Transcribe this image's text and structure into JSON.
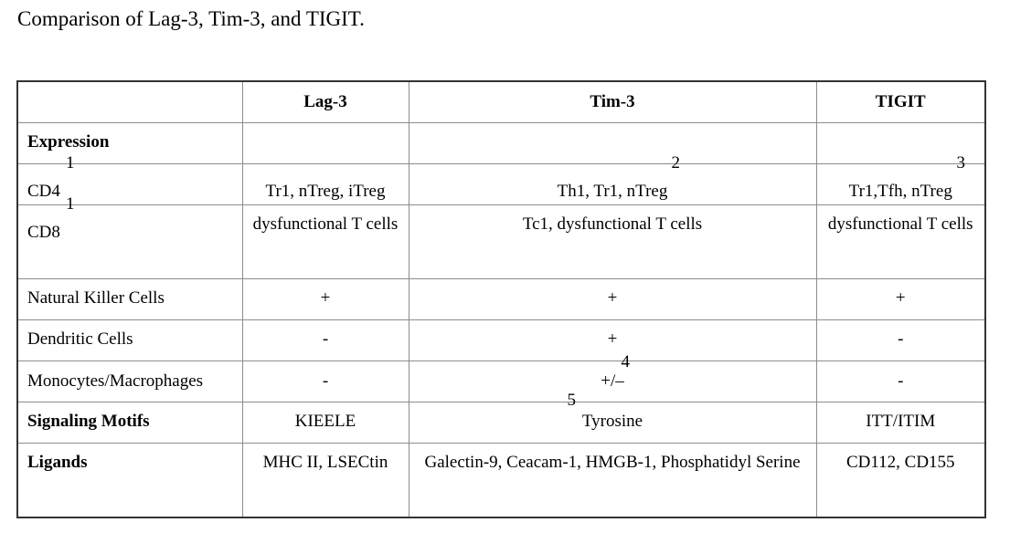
{
  "caption": "Comparison of Lag-3, Tim-3, and TIGIT.",
  "table": {
    "headers": [
      "",
      "Lag-3",
      "Tim-3",
      "TIGIT"
    ],
    "rows": [
      {
        "label": "Expression",
        "bold": true,
        "cells": [
          "",
          "",
          ""
        ]
      },
      {
        "label": "CD4",
        "label_sup": "1",
        "cells": [
          "Tr1, nTreg, iTreg",
          "Th1, Tr1, nTreg",
          "Tr1,Tfh, nTreg"
        ],
        "cell_sups": [
          "",
          "2",
          "3"
        ]
      },
      {
        "label": "CD8",
        "label_sup": "1",
        "cells": [
          "dysfunctional T cells",
          "Tc1, dysfunctional T cells",
          "dysfunctional T cells"
        ]
      },
      {
        "label": "Natural Killer Cells",
        "cells": [
          "+",
          "+",
          "+"
        ]
      },
      {
        "label": "Dendritic Cells",
        "cells": [
          "-",
          "+",
          "-"
        ]
      },
      {
        "label": "Monocytes/Macrophages",
        "cells": [
          "-",
          "+/–",
          "-"
        ],
        "cell_sups": [
          "",
          "4",
          ""
        ]
      },
      {
        "label": "Signaling Motifs",
        "bold": true,
        "cells": [
          "KIEELE",
          "Tyrosine",
          "ITT/ITIM"
        ],
        "cell_sups": [
          "",
          "5",
          ""
        ]
      },
      {
        "label": "Ligands",
        "bold": true,
        "cells": [
          "MHC II, LSECtin",
          "Galectin-9, Ceacam-1, HMGB-1, Phosphatidyl Serine",
          "CD112, CD155"
        ]
      }
    ]
  }
}
